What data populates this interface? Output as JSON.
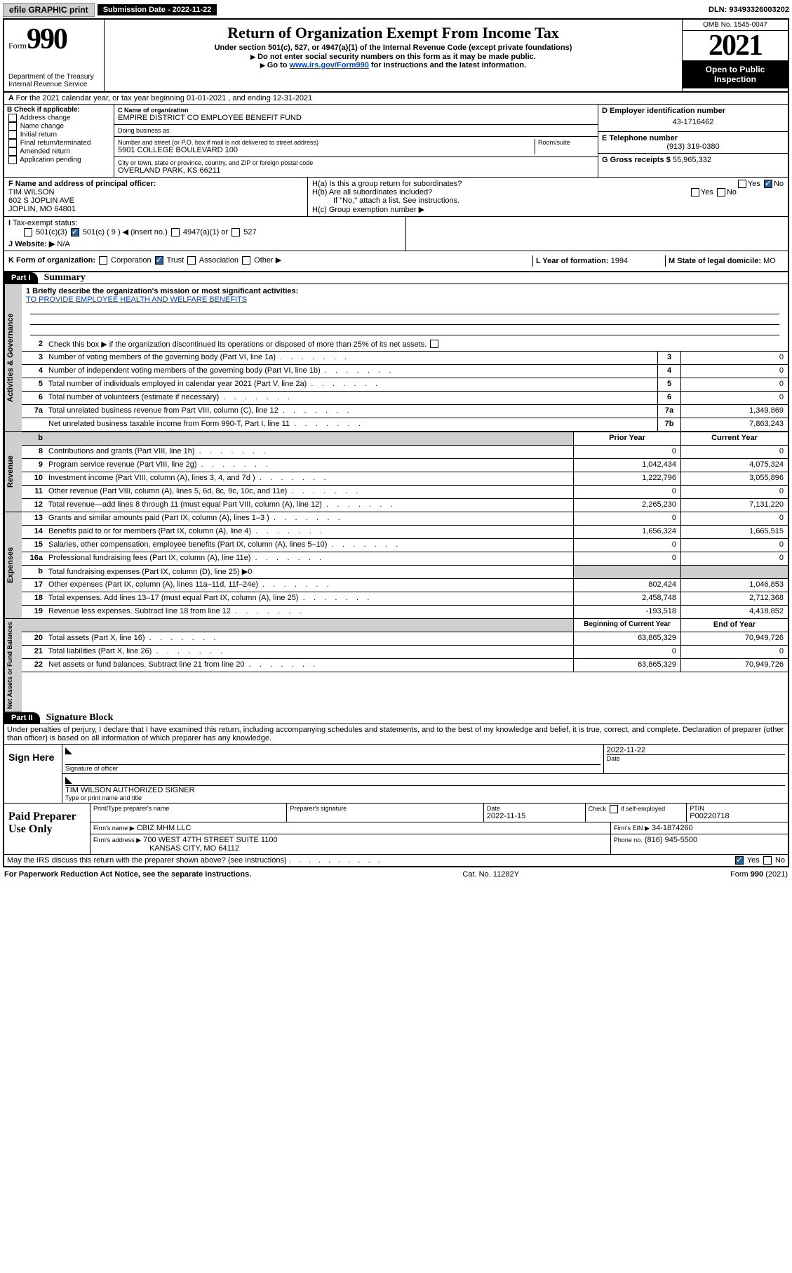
{
  "topbar": {
    "efile": "efile GRAPHIC print",
    "submission_label": "Submission Date - 2022-11-22",
    "dln": "DLN: 93493326003202"
  },
  "header": {
    "form_word": "Form",
    "form_num": "990",
    "dept": "Department of the Treasury",
    "irs": "Internal Revenue Service",
    "title": "Return of Organization Exempt From Income Tax",
    "sub1": "Under section 501(c), 527, or 4947(a)(1) of the Internal Revenue Code (except private foundations)",
    "sub2": "Do not enter social security numbers on this form as it may be made public.",
    "sub3_pre": "Go to ",
    "sub3_link": "www.irs.gov/Form990",
    "sub3_post": " for instructions and the latest information.",
    "omb": "OMB No. 1545-0047",
    "year": "2021",
    "open": "Open to Public Inspection"
  },
  "lineA": "For the 2021 calendar year, or tax year beginning 01-01-2021   , and ending 12-31-2021",
  "colB": {
    "label": "B Check if applicable:",
    "items": [
      "Address change",
      "Name change",
      "Initial return",
      "Final return/terminated",
      "Amended return",
      "Application pending"
    ]
  },
  "colC": {
    "name_lbl": "C Name of organization",
    "name": "EMPIRE DISTRICT CO EMPLOYEE BENEFIT FUND",
    "dba_lbl": "Doing business as",
    "dba": "",
    "street_lbl": "Number and street (or P.O. box if mail is not delivered to street address)",
    "room_lbl": "Room/suite",
    "street": "5901 COLLEGE BOULEVARD 100",
    "city_lbl": "City or town, state or province, country, and ZIP or foreign postal code",
    "city": "OVERLAND PARK, KS  66211"
  },
  "colDE": {
    "d_lbl": "D Employer identification number",
    "d_val": "43-1716462",
    "e_lbl": "E Telephone number",
    "e_val": "(913) 319-0380",
    "g_lbl": "G Gross receipts $",
    "g_val": "55,965,332"
  },
  "F": {
    "lbl": "F Name and address of principal officer:",
    "name": "TIM WILSON",
    "addr1": "602 S JOPLIN AVE",
    "addr2": "JOPLIN, MO  64801"
  },
  "H": {
    "a": "H(a)  Is this a group return for subordinates?",
    "yes": "Yes",
    "no": "No",
    "b": "H(b)  Are all subordinates included?",
    "b_note": "If \"No,\" attach a list. See instructions.",
    "c": "H(c)  Group exemption number ▶"
  },
  "I": {
    "lbl": "Tax-exempt status:",
    "opt1": "501(c)(3)",
    "opt2": "501(c) ( 9 ) ◀ (insert no.)",
    "opt3": "4947(a)(1) or",
    "opt4": "527"
  },
  "J": {
    "lbl": "Website: ▶",
    "val": "N/A"
  },
  "K": {
    "lbl": "K Form of organization:",
    "opts": [
      "Corporation",
      "Trust",
      "Association",
      "Other ▶"
    ]
  },
  "L": {
    "lbl": "L Year of formation:",
    "val": "1994"
  },
  "M": {
    "lbl": "M State of legal domicile:",
    "val": "MO"
  },
  "part1": {
    "hdr": "Part I",
    "title": "Summary",
    "l1_lbl": "1  Briefly describe the organization's mission or most significant activities:",
    "l1_val": "TO PROVIDE EMPLOYEE HEALTH AND WELFARE BENEFITS",
    "l2": "Check this box ▶        if the organization discontinued its operations or disposed of more than 25% of its net assets.",
    "rows_gov": [
      {
        "n": "3",
        "d": "Number of voting members of the governing body (Part VI, line 1a)",
        "box": "3",
        "v": "0"
      },
      {
        "n": "4",
        "d": "Number of independent voting members of the governing body (Part VI, line 1b)",
        "box": "4",
        "v": "0"
      },
      {
        "n": "5",
        "d": "Total number of individuals employed in calendar year 2021 (Part V, line 2a)",
        "box": "5",
        "v": "0"
      },
      {
        "n": "6",
        "d": "Total number of volunteers (estimate if necessary)",
        "box": "6",
        "v": "0"
      },
      {
        "n": "7a",
        "d": "Total unrelated business revenue from Part VIII, column (C), line 12",
        "box": "7a",
        "v": "1,349,869"
      },
      {
        "n": "",
        "d": "Net unrelated business taxable income from Form 990-T, Part I, line 11",
        "box": "7b",
        "v": "7,863,243"
      }
    ],
    "col_hdr_prior": "Prior Year",
    "col_hdr_curr": "Current Year",
    "rows_rev": [
      {
        "n": "8",
        "d": "Contributions and grants (Part VIII, line 1h)",
        "p": "0",
        "c": "0"
      },
      {
        "n": "9",
        "d": "Program service revenue (Part VIII, line 2g)",
        "p": "1,042,434",
        "c": "4,075,324"
      },
      {
        "n": "10",
        "d": "Investment income (Part VIII, column (A), lines 3, 4, and 7d )",
        "p": "1,222,796",
        "c": "3,055,896"
      },
      {
        "n": "11",
        "d": "Other revenue (Part VIII, column (A), lines 5, 6d, 8c, 9c, 10c, and 11e)",
        "p": "0",
        "c": "0"
      },
      {
        "n": "12",
        "d": "Total revenue—add lines 8 through 11 (must equal Part VIII, column (A), line 12)",
        "p": "2,265,230",
        "c": "7,131,220"
      }
    ],
    "rows_exp": [
      {
        "n": "13",
        "d": "Grants and similar amounts paid (Part IX, column (A), lines 1–3 )",
        "p": "0",
        "c": "0"
      },
      {
        "n": "14",
        "d": "Benefits paid to or for members (Part IX, column (A), line 4)",
        "p": "1,656,324",
        "c": "1,665,515"
      },
      {
        "n": "15",
        "d": "Salaries, other compensation, employee benefits (Part IX, column (A), lines 5–10)",
        "p": "0",
        "c": "0"
      },
      {
        "n": "16a",
        "d": "Professional fundraising fees (Part IX, column (A), line 11e)",
        "p": "0",
        "c": "0"
      },
      {
        "n": "b",
        "d": "Total fundraising expenses (Part IX, column (D), line 25) ▶0",
        "shade": true
      },
      {
        "n": "17",
        "d": "Other expenses (Part IX, column (A), lines 11a–11d, 11f–24e)",
        "p": "802,424",
        "c": "1,046,853"
      },
      {
        "n": "18",
        "d": "Total expenses. Add lines 13–17 (must equal Part IX, column (A), line 25)",
        "p": "2,458,748",
        "c": "2,712,368"
      },
      {
        "n": "19",
        "d": "Revenue less expenses. Subtract line 18 from line 12",
        "p": "-193,518",
        "c": "4,418,852"
      }
    ],
    "col_hdr_beg": "Beginning of Current Year",
    "col_hdr_end": "End of Year",
    "rows_net": [
      {
        "n": "20",
        "d": "Total assets (Part X, line 16)",
        "p": "63,865,329",
        "c": "70,949,726"
      },
      {
        "n": "21",
        "d": "Total liabilities (Part X, line 26)",
        "p": "0",
        "c": "0"
      },
      {
        "n": "22",
        "d": "Net assets or fund balances. Subtract line 21 from line 20",
        "p": "63,865,329",
        "c": "70,949,726"
      }
    ],
    "vtabs": {
      "gov": "Activities & Governance",
      "rev": "Revenue",
      "exp": "Expenses",
      "net": "Net Assets or Fund Balances"
    }
  },
  "part2": {
    "hdr": "Part II",
    "title": "Signature Block",
    "decl": "Under penalties of perjury, I declare that I have examined this return, including accompanying schedules and statements, and to the best of my knowledge and belief, it is true, correct, and complete. Declaration of preparer (other than officer) is based on all information of which preparer has any knowledge.",
    "sign_here": "Sign Here",
    "sig_officer": "Signature of officer",
    "date": "Date",
    "date_val": "2022-11-22",
    "name_title": "TIM WILSON  AUTHORIZED SIGNER",
    "name_title_lbl": "Type or print name and title",
    "paid": "Paid Preparer Use Only",
    "col_prep_name": "Print/Type preparer's name",
    "col_prep_sig": "Preparer's signature",
    "col_date": "Date",
    "col_date_val": "2022-11-15",
    "col_check": "Check         if self-employed",
    "col_ptin": "PTIN",
    "ptin_val": "P00220718",
    "firm_name_lbl": "Firm's name    ▶",
    "firm_name": "CBIZ MHM LLC",
    "firm_ein_lbl": "Firm's EIN ▶",
    "firm_ein": "34-1874260",
    "firm_addr_lbl": "Firm's address ▶",
    "firm_addr1": "700 WEST 47TH STREET SUITE 1100",
    "firm_addr2": "KANSAS CITY, MO  64112",
    "phone_lbl": "Phone no.",
    "phone": "(816) 945-5500",
    "may_irs": "May the IRS discuss this return with the preparer shown above? (see instructions)",
    "yes": "Yes",
    "no": "No"
  },
  "footer": {
    "left": "For Paperwork Reduction Act Notice, see the separate instructions.",
    "mid": "Cat. No. 11282Y",
    "right": "Form 990 (2021)"
  }
}
